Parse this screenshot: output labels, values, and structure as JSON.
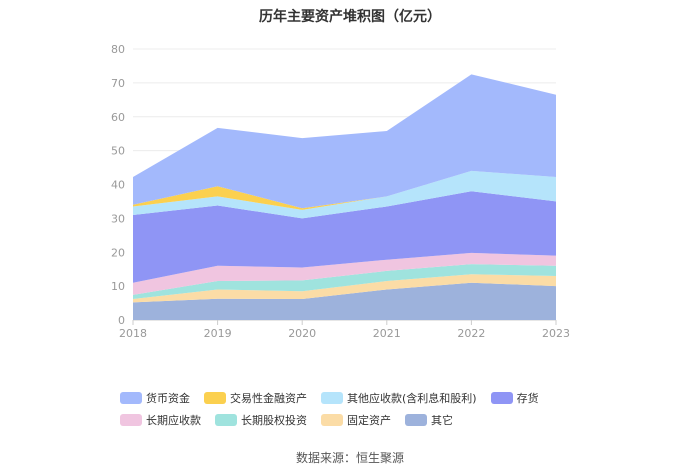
{
  "chart_data": {
    "type": "area",
    "stacked": true,
    "title": "历年主要资产堆积图（亿元）",
    "x": [
      "2018",
      "2019",
      "2020",
      "2021",
      "2022",
      "2023"
    ],
    "ylim": [
      0,
      80
    ],
    "yticks": [
      0,
      10,
      20,
      30,
      40,
      50,
      60,
      70,
      80
    ],
    "grid": true,
    "legend_position": "bottom",
    "series": [
      {
        "name": "其它",
        "color": "#9db2dc",
        "values": [
          5.2,
          6.3,
          6.2,
          9.0,
          11.0,
          10.0
        ]
      },
      {
        "name": "固定资产",
        "color": "#fbdca6",
        "values": [
          1.0,
          2.7,
          2.3,
          2.5,
          2.5,
          3.0
        ]
      },
      {
        "name": "长期股权投资",
        "color": "#9fe3de",
        "values": [
          1.2,
          2.5,
          3.2,
          3.0,
          3.0,
          3.0
        ]
      },
      {
        "name": "长期应收款",
        "color": "#f0c5e0",
        "values": [
          3.6,
          4.5,
          3.8,
          3.3,
          3.3,
          3.0
        ]
      },
      {
        "name": "存货",
        "color": "#8f95f5",
        "values": [
          20.0,
          17.8,
          14.5,
          15.7,
          18.2,
          16.0
        ]
      },
      {
        "name": "其他应收款(含利息和股利)",
        "color": "#b5e4fb",
        "values": [
          2.5,
          2.7,
          2.5,
          3.0,
          6.0,
          7.2
        ]
      },
      {
        "name": "交易性金融资产",
        "color": "#fbd04f",
        "values": [
          0.5,
          3.0,
          0.5,
          0.0,
          0.0,
          0.0
        ]
      },
      {
        "name": "货币资金",
        "color": "#a3b9fc",
        "values": [
          8.2,
          17.2,
          20.7,
          19.3,
          28.5,
          24.3
        ]
      }
    ],
    "source": "数据来源：恒生聚源"
  },
  "legend_order": [
    "货币资金",
    "交易性金融资产",
    "其他应收款(含利息和股利)",
    "存货",
    "长期应收款",
    "长期股权投资",
    "固定资产",
    "其它"
  ]
}
